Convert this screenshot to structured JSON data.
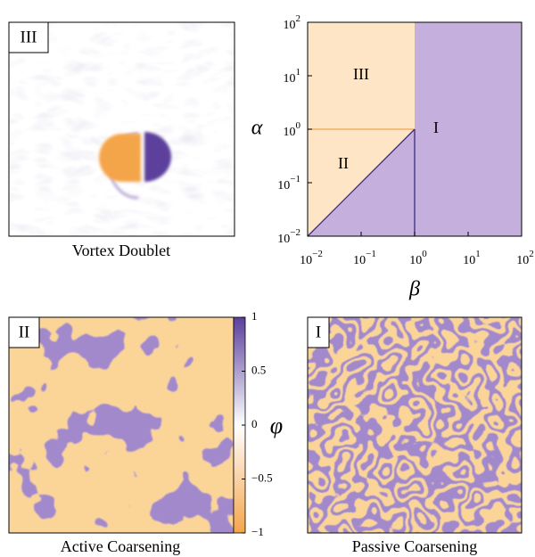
{
  "chart_data": {
    "type": "phase-diagram",
    "xlabel": "β",
    "ylabel": "α",
    "log_x": true,
    "log_y": true,
    "xlim": [
      0.01,
      100
    ],
    "ylim": [
      0.01,
      100
    ],
    "xticks": [
      {
        "value": 0.01,
        "label": "10",
        "exponent": "−2"
      },
      {
        "value": 0.1,
        "label": "10",
        "exponent": "−1"
      },
      {
        "value": 1,
        "label": "10",
        "exponent": "0"
      },
      {
        "value": 10,
        "label": "10",
        "exponent": "1"
      },
      {
        "value": 100,
        "label": "10",
        "exponent": "2"
      }
    ],
    "yticks": [
      {
        "value": 0.01,
        "label": "10",
        "exponent": "−2"
      },
      {
        "value": 0.1,
        "label": "10",
        "exponent": "−1"
      },
      {
        "value": 1,
        "label": "10",
        "exponent": "0"
      },
      {
        "value": 10,
        "label": "10",
        "exponent": "1"
      },
      {
        "value": 100,
        "label": "10",
        "exponent": "2"
      }
    ],
    "regions": [
      {
        "name": "I",
        "color": "#c4afdd",
        "beta": [
          0.01,
          1,
          1,
          100,
          100
        ],
        "alpha": [
          0.01,
          1,
          100,
          100,
          0.01
        ]
      },
      {
        "name": "II",
        "color": "#fde5c6",
        "beta": [
          0.01,
          0.01,
          1
        ],
        "alpha": [
          0.01,
          1,
          1
        ]
      },
      {
        "name": "III",
        "color": "#fde5c6",
        "beta": [
          0.01,
          1,
          1,
          0.01
        ],
        "alpha": [
          1,
          1,
          100,
          100
        ]
      }
    ],
    "boundaries": [
      {
        "color": "#f2a54a",
        "beta": [
          0.01,
          1
        ],
        "alpha": [
          1,
          1
        ]
      },
      {
        "color": "#3b2c82",
        "beta": [
          0.01,
          1
        ],
        "alpha": [
          0.01,
          1
        ]
      },
      {
        "color": "#3b2c82",
        "beta": [
          1,
          1
        ],
        "alpha": [
          1,
          0.01
        ]
      }
    ]
  },
  "colorbar": {
    "label": "φ",
    "lim": [
      -1,
      1
    ],
    "colors": [
      "#f5a54a",
      "#ffffff",
      "#5b3f9c"
    ],
    "ticks": [
      1,
      0.5,
      0,
      {
        "value": -0.5,
        "label": "−0.5"
      },
      {
        "value": -1,
        "label": "−1"
      }
    ]
  },
  "panels": [
    {
      "label": "III",
      "caption": "Vortex Doublet"
    },
    {
      "label": "II",
      "caption": "Active Coarsening"
    },
    {
      "label": "I",
      "caption": "Passive Coarsening"
    }
  ]
}
